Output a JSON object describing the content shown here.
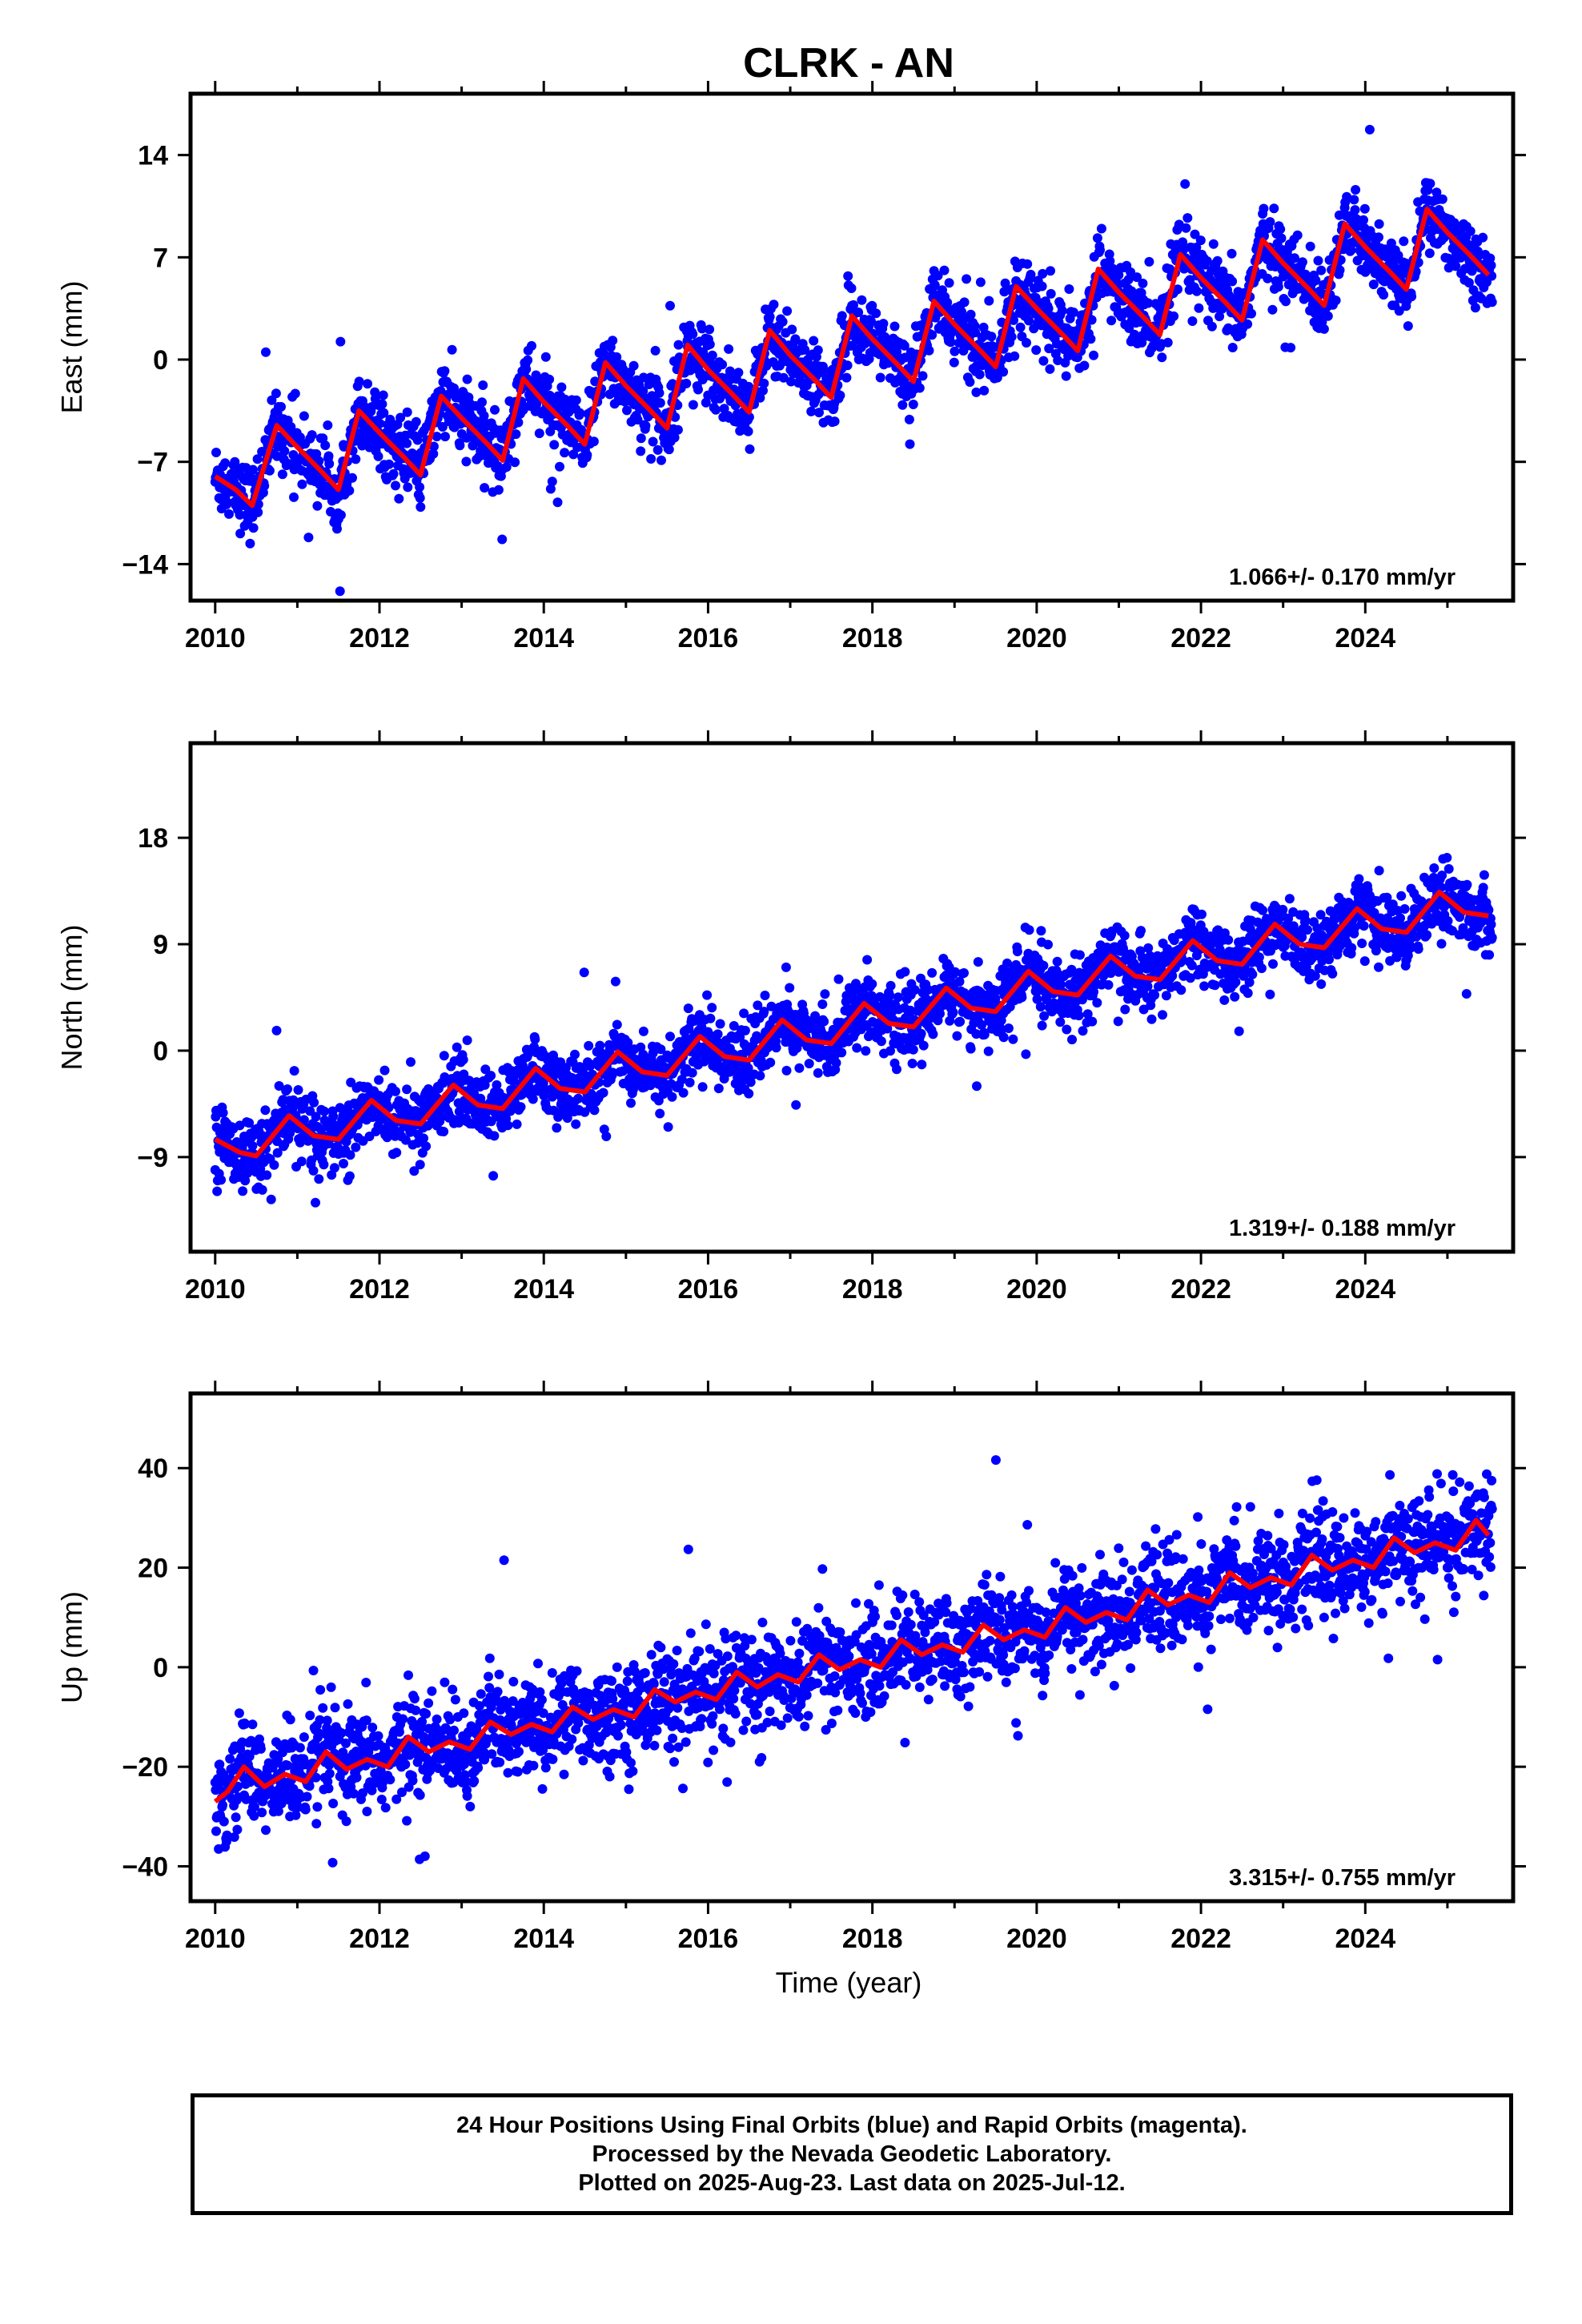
{
  "title": "CLRK - AN",
  "xlabel": "Time (year)",
  "colors": {
    "points": "#0000ff",
    "fit": "#ff0000",
    "frame": "#000000"
  },
  "chart_data": [
    {
      "type": "scatter",
      "component": "East",
      "ylabel": "East (mm)",
      "xlim": [
        2009.7,
        2025.8
      ],
      "ylim": [
        -16.5,
        18.2
      ],
      "xticks": [
        "2010",
        "2012",
        "2014",
        "2016",
        "2018",
        "2020",
        "2022",
        "2024"
      ],
      "yticks": [
        "−14",
        "−7",
        "0",
        "7",
        "14"
      ],
      "ytick_values": [
        -14,
        -7,
        0,
        7,
        14
      ],
      "rate_label": "1.066+/- 0.170 mm/yr",
      "trend": {
        "intercept_2010": -7.5,
        "rate": 1.066
      },
      "fit_curve": {
        "x": [
          2010.0,
          2010.25,
          2010.45,
          2010.75,
          2011.0,
          2011.3,
          2011.5,
          2011.75,
          2012.0,
          2012.3,
          2012.5,
          2012.75,
          2013.0,
          2013.3,
          2013.5,
          2013.75,
          2014.0,
          2014.3,
          2014.5,
          2014.75,
          2015.0,
          2015.3,
          2015.5,
          2015.75,
          2016.0,
          2016.3,
          2016.5,
          2016.75,
          2017.0,
          2017.3,
          2017.5,
          2017.75,
          2018.0,
          2018.3,
          2018.5,
          2018.75,
          2019.0,
          2019.3,
          2019.5,
          2019.75,
          2020.0,
          2020.3,
          2020.5,
          2020.75,
          2021.0,
          2021.3,
          2021.5,
          2021.75,
          2022.0,
          2022.3,
          2022.5,
          2022.75,
          2023.0,
          2023.3,
          2023.5,
          2023.75,
          2024.0,
          2024.3,
          2024.5,
          2024.75,
          2025.0,
          2025.3,
          2025.5
        ],
        "y": [
          -8.0,
          -8.9,
          -10.0,
          -4.5,
          -6.0,
          -7.7,
          -8.9,
          -3.5,
          -5.0,
          -6.7,
          -7.9,
          -2.5,
          -4.0,
          -5.7,
          -6.9,
          -1.3,
          -2.9,
          -4.6,
          -5.8,
          -0.2,
          -1.8,
          -3.5,
          -4.7,
          1.0,
          -0.7,
          -2.4,
          -3.6,
          2.0,
          0.3,
          -1.4,
          -2.6,
          3.0,
          1.4,
          -0.3,
          -1.5,
          4.0,
          2.4,
          0.7,
          -0.5,
          5.0,
          3.5,
          1.8,
          0.6,
          6.2,
          4.6,
          2.9,
          1.7,
          7.2,
          5.6,
          3.9,
          2.7,
          8.2,
          6.6,
          4.9,
          3.7,
          9.3,
          7.7,
          6.0,
          4.8,
          10.3,
          8.7,
          7.0,
          5.8
        ]
      }
    },
    {
      "type": "scatter",
      "component": "North",
      "ylabel": "North (mm)",
      "xlim": [
        2009.7,
        2025.8
      ],
      "ylim": [
        -17.0,
        26.0
      ],
      "xticks": [
        "2010",
        "2012",
        "2014",
        "2016",
        "2018",
        "2020",
        "2022",
        "2024"
      ],
      "yticks": [
        "−9",
        "0",
        "9",
        "18"
      ],
      "ytick_values": [
        -9,
        0,
        9,
        18
      ],
      "rate_label": "1.319+/- 0.188 mm/yr",
      "trend": {
        "intercept_2010": -7.5,
        "rate": 1.319
      },
      "fit_curve": {
        "x": [
          2010.0,
          2010.3,
          2010.5,
          2010.9,
          2011.2,
          2011.5,
          2011.9,
          2012.2,
          2012.5,
          2012.9,
          2013.2,
          2013.5,
          2013.9,
          2014.2,
          2014.5,
          2014.9,
          2015.2,
          2015.5,
          2015.9,
          2016.2,
          2016.5,
          2016.9,
          2017.2,
          2017.5,
          2017.9,
          2018.2,
          2018.5,
          2018.9,
          2019.2,
          2019.5,
          2019.9,
          2020.2,
          2020.5,
          2020.9,
          2021.2,
          2021.5,
          2021.9,
          2022.2,
          2022.5,
          2022.9,
          2023.2,
          2023.5,
          2023.9,
          2024.2,
          2024.5,
          2024.9,
          2025.2,
          2025.5
        ],
        "y": [
          -7.5,
          -8.6,
          -8.9,
          -5.5,
          -7.2,
          -7.5,
          -4.2,
          -5.9,
          -6.2,
          -2.9,
          -4.6,
          -4.9,
          -1.5,
          -3.2,
          -3.5,
          -0.1,
          -1.8,
          -2.1,
          1.2,
          -0.5,
          -0.8,
          2.6,
          0.9,
          0.6,
          4.0,
          2.3,
          2.0,
          5.3,
          3.6,
          3.3,
          6.7,
          5.0,
          4.7,
          8.0,
          6.3,
          6.0,
          9.3,
          7.6,
          7.3,
          10.7,
          9.0,
          8.7,
          12.0,
          10.3,
          10.0,
          13.4,
          11.7,
          11.4
        ]
      }
    },
    {
      "type": "scatter",
      "component": "Up",
      "ylabel": "Up (mm)",
      "xlim": [
        2009.7,
        2025.8
      ],
      "ylim": [
        -47.0,
        55.0
      ],
      "xticks": [
        "2010",
        "2012",
        "2014",
        "2016",
        "2018",
        "2020",
        "2022",
        "2024"
      ],
      "yticks": [
        "−40",
        "−20",
        "0",
        "20",
        "40"
      ],
      "ytick_values": [
        -40,
        -20,
        0,
        20,
        40
      ],
      "rate_label": "3.315+/- 0.755 mm/yr",
      "trend": {
        "intercept_2010": -24.0,
        "rate": 3.315
      },
      "fit_curve": {
        "x": [
          2010.0,
          2010.15,
          2010.35,
          2010.6,
          2010.85,
          2011.1,
          2011.35,
          2011.6,
          2011.85,
          2012.1,
          2012.35,
          2012.6,
          2012.85,
          2013.1,
          2013.35,
          2013.6,
          2013.85,
          2014.1,
          2014.35,
          2014.6,
          2014.85,
          2015.1,
          2015.35,
          2015.6,
          2015.85,
          2016.1,
          2016.35,
          2016.6,
          2016.85,
          2017.1,
          2017.35,
          2017.6,
          2017.85,
          2018.1,
          2018.35,
          2018.6,
          2018.85,
          2019.1,
          2019.35,
          2019.6,
          2019.85,
          2020.1,
          2020.35,
          2020.6,
          2020.85,
          2021.1,
          2021.35,
          2021.6,
          2021.85,
          2022.1,
          2022.35,
          2022.6,
          2022.85,
          2023.1,
          2023.35,
          2023.6,
          2023.85,
          2024.1,
          2024.35,
          2024.6,
          2024.85,
          2025.1,
          2025.35,
          2025.5
        ],
        "y": [
          -27.0,
          -25.0,
          -20.0,
          -24.0,
          -21.5,
          -23.0,
          -17.0,
          -20.5,
          -18.5,
          -20.0,
          -14.0,
          -17.0,
          -15.0,
          -16.5,
          -11.0,
          -13.5,
          -11.5,
          -13.0,
          -8.0,
          -10.5,
          -8.5,
          -10.0,
          -4.5,
          -7.0,
          -5.0,
          -6.5,
          -1.0,
          -4.0,
          -1.5,
          -3.0,
          2.5,
          -0.5,
          1.5,
          0.0,
          5.5,
          2.5,
          4.5,
          3.0,
          8.5,
          5.5,
          7.5,
          6.0,
          12.0,
          9.0,
          11.0,
          9.5,
          15.5,
          12.5,
          14.5,
          13.0,
          19.0,
          16.0,
          18.0,
          16.5,
          22.5,
          19.5,
          21.5,
          20.0,
          26.0,
          23.0,
          25.0,
          23.5,
          29.5,
          26.5
        ]
      }
    }
  ],
  "footer": {
    "line1": "24 Hour Positions Using Final Orbits (blue) and Rapid Orbits (magenta).",
    "line2": "Processed by the Nevada Geodetic Laboratory.",
    "line3": "Plotted on 2025-Aug-23. Last data on 2025-Jul-12."
  }
}
